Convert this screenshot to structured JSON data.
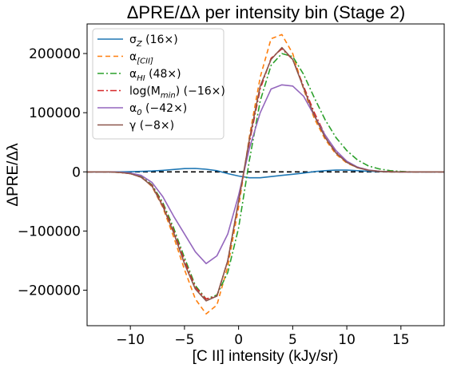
{
  "chart_data": {
    "type": "line",
    "title": "ΔPRE/Δλ per intensity bin (Stage 2)",
    "xlabel": "[C II] intensity (kJy/sr)",
    "ylabel": "ΔPRE/Δλ",
    "xlim": [
      -14,
      19
    ],
    "ylim": [
      -260000,
      250000
    ],
    "xticks": [
      -10,
      -5,
      0,
      5,
      10,
      15
    ],
    "xtick_labels": [
      "−10",
      "−5",
      "0",
      "5",
      "10",
      "15"
    ],
    "yticks": [
      -200000,
      -100000,
      0,
      100000,
      200000
    ],
    "ytick_labels": [
      "−200000",
      "−100000",
      "0",
      "100000",
      "200000"
    ],
    "grid": false,
    "legend_position": "top-left",
    "x": [
      -14,
      -13,
      -12,
      -11,
      -10,
      -9,
      -8,
      -7,
      -6,
      -5,
      -4,
      -3,
      -2,
      -1,
      0,
      1,
      2,
      3,
      4,
      5,
      6,
      7,
      8,
      9,
      10,
      11,
      12,
      13,
      14,
      15,
      16,
      17,
      18,
      19
    ],
    "reference_line": {
      "y": 0,
      "style": "dashed",
      "color": "#000000"
    },
    "series": [
      {
        "name": "σZ (16×)",
        "label_main": "σ",
        "label_sub": "Z",
        "label_rest": " (16×)",
        "color": "#1f77b4",
        "dash": "solid",
        "values": [
          0,
          0,
          0,
          0,
          200,
          800,
          1500,
          2500,
          4000,
          5500,
          5800,
          4500,
          2000,
          -3000,
          -7000,
          -10000,
          -10000,
          -8000,
          -6000,
          -4000,
          -2000,
          500,
          2000,
          3000,
          3000,
          2000,
          1000,
          500,
          200,
          0,
          0,
          0,
          0,
          0
        ]
      },
      {
        "name": "α[CII]",
        "label_main": "α",
        "label_sub": "[CII]",
        "label_rest": "",
        "color": "#ff7f0e",
        "dash": "6,4",
        "values": [
          0,
          0,
          0,
          -1000,
          -3000,
          -8000,
          -25000,
          -60000,
          -110000,
          -165000,
          -215000,
          -240000,
          -225000,
          -160000,
          -60000,
          60000,
          160000,
          225000,
          232000,
          200000,
          140000,
          90000,
          55000,
          30000,
          15000,
          7000,
          3000,
          1000,
          0,
          0,
          0,
          0,
          0,
          0
        ]
      },
      {
        "name": "αHI (48×)",
        "label_main": "α",
        "label_sub": "HI",
        "label_rest": " (48×)",
        "color": "#2ca02c",
        "dash": "8,3,2,3",
        "values": [
          0,
          0,
          0,
          -1000,
          -2500,
          -7000,
          -22000,
          -52000,
          -95000,
          -145000,
          -192000,
          -215000,
          -208000,
          -170000,
          -95000,
          20000,
          120000,
          180000,
          200000,
          195000,
          165000,
          125000,
          88000,
          58000,
          36000,
          20000,
          10000,
          5000,
          2000,
          800,
          0,
          0,
          0,
          0
        ]
      },
      {
        "name": "log(Mmin) (−16×)",
        "label_main": "log(M",
        "label_sub": "min",
        "label_rest": ") (−16×)",
        "color": "#d62728",
        "dash": "8,3,2,3",
        "values": [
          0,
          0,
          0,
          -1000,
          -3000,
          -9000,
          -23000,
          -55000,
          -100000,
          -150000,
          -195000,
          -215000,
          -210000,
          -150000,
          -50000,
          50000,
          140000,
          192000,
          208000,
          190000,
          145000,
          100000,
          62000,
          35000,
          17000,
          8000,
          3000,
          1000,
          300,
          0,
          0,
          0,
          0,
          0
        ]
      },
      {
        "name": "α0 (−42×)",
        "label_main": "α",
        "label_sub": "0",
        "label_rest": " (−42×)",
        "color": "#9467bd",
        "dash": "solid",
        "values": [
          0,
          0,
          0,
          -500,
          -2000,
          -6000,
          -18000,
          -42000,
          -75000,
          -105000,
          -135000,
          -155000,
          -142000,
          -105000,
          -40000,
          40000,
          100000,
          140000,
          147000,
          145000,
          128000,
          95000,
          62000,
          36000,
          18000,
          8000,
          3000,
          1000,
          0,
          0,
          0,
          0,
          0,
          0
        ]
      },
      {
        "name": "γ (−8×)",
        "label_main": "γ",
        "label_sub": "",
        "label_rest": " (−8×)",
        "color": "#8c564b",
        "dash": "solid",
        "values": [
          0,
          0,
          0,
          -1000,
          -3000,
          -9000,
          -24000,
          -58000,
          -103000,
          -155000,
          -198000,
          -218000,
          -210000,
          -150000,
          -50000,
          55000,
          145000,
          190000,
          210000,
          190000,
          142000,
          95000,
          58000,
          32000,
          16000,
          7000,
          2500,
          800,
          0,
          0,
          0,
          0,
          0,
          0
        ]
      }
    ]
  }
}
